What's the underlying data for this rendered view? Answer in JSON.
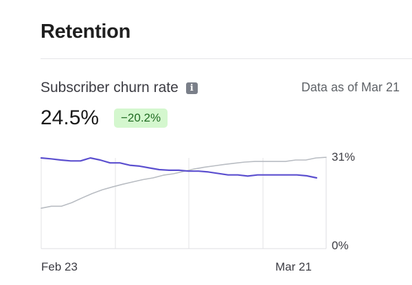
{
  "header": {
    "title": "Retention"
  },
  "metric": {
    "label": "Subscriber churn rate",
    "info_icon": "info-icon",
    "data_as_of": "Data as of Mar 21",
    "value": "24.5%",
    "change": "−20.2%",
    "change_color": "#d4f7ce"
  },
  "chart_data": {
    "type": "line",
    "title": "",
    "xlabel": "",
    "ylabel": "",
    "x_ticks": [
      "Feb 23",
      "Mar 21"
    ],
    "y_ticks": [
      "31%",
      "0%"
    ],
    "ylim": [
      0,
      31
    ],
    "grid": true,
    "series": [
      {
        "color": "#5b4fcf",
        "values": [
          31.0,
          30.7,
          30.3,
          30.0,
          30.0,
          31.0,
          30.3,
          29.3,
          29.3,
          28.5,
          28.2,
          27.6,
          27.0,
          26.8,
          26.8,
          26.5,
          26.5,
          26.2,
          25.7,
          25.2,
          25.2,
          24.8,
          25.2,
          25.2,
          25.2,
          25.2,
          25.2,
          24.9,
          24.2
        ]
      },
      {
        "color": "#b8bcc2",
        "values": [
          13.8,
          14.5,
          14.5,
          15.7,
          17.3,
          18.8,
          20.1,
          21.1,
          22.0,
          22.8,
          23.6,
          24.2,
          25.1,
          25.6,
          26.4,
          27.2,
          27.8,
          28.3,
          28.8,
          29.2,
          29.6,
          29.8,
          29.8,
          29.8,
          29.8,
          30.3,
          30.3,
          31.0,
          31.2
        ]
      }
    ]
  }
}
